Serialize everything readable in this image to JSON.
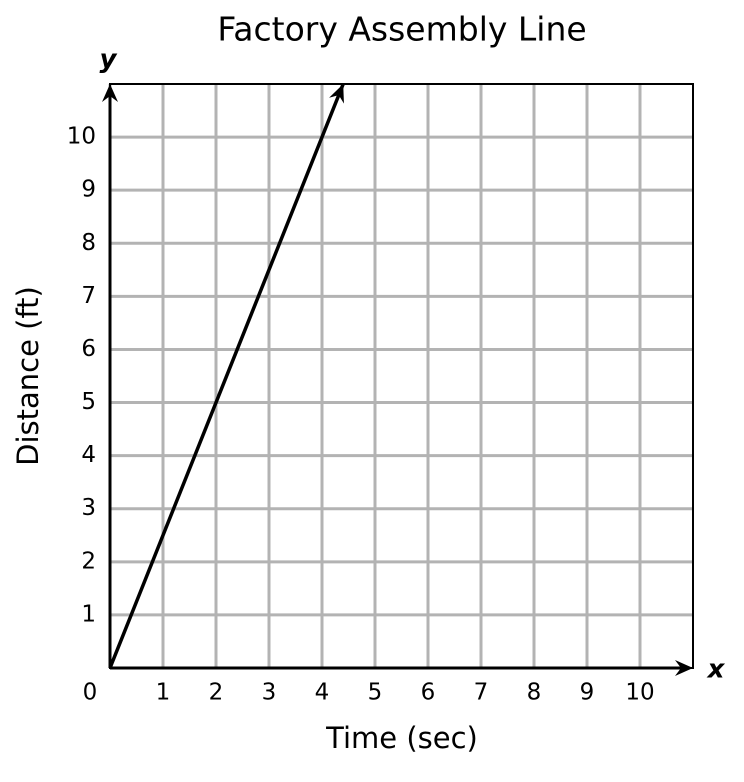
{
  "chart_data": {
    "type": "line",
    "title": "Factory Assembly Line",
    "x_label": "Time (sec)",
    "y_label": "Distance (ft)",
    "x_axis_letter": "x",
    "y_axis_letter": "y",
    "x": [
      0,
      4.4
    ],
    "values": [
      0,
      11
    ],
    "color": "#000000",
    "xlim": [
      0,
      11
    ],
    "ylim": [
      0,
      11
    ],
    "xticks": [
      0,
      1,
      2,
      3,
      4,
      5,
      6,
      7,
      8,
      9,
      10
    ],
    "yticks": [
      1,
      2,
      3,
      4,
      5,
      6,
      7,
      8,
      9,
      10
    ],
    "grid": true
  }
}
